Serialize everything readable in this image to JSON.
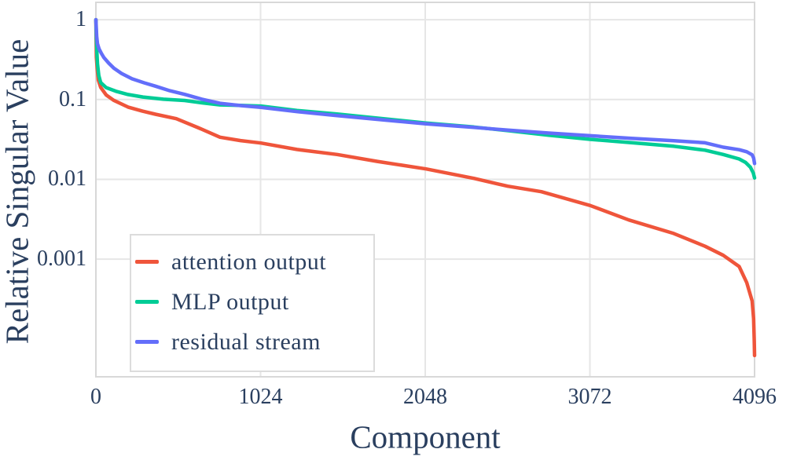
{
  "figure": {
    "background_color": "#ffffff",
    "text_color": "#2a3f5f",
    "grid_color": "#e6e6e6",
    "border_color": "#d8d8d8",
    "legend_border_color": "#dcdcdc"
  },
  "chart_data": {
    "type": "line",
    "title": "",
    "xlabel": "Component",
    "ylabel": "Relative Singular Value",
    "grid": true,
    "legend_position": "bottom-left",
    "x_axis": {
      "scale": "linear",
      "min": 0,
      "max": 4096,
      "ticks": [
        {
          "value": 0,
          "label": "0"
        },
        {
          "value": 1024,
          "label": "1024"
        },
        {
          "value": 2048,
          "label": "2048"
        },
        {
          "value": 3072,
          "label": "3072"
        },
        {
          "value": 4096,
          "label": "4096"
        }
      ]
    },
    "y_axis": {
      "scale": "log",
      "min": 3.36e-05,
      "max": 1.65,
      "ticks": [
        {
          "value": 1,
          "label": "1"
        },
        {
          "value": 0.1,
          "label": "0.1"
        },
        {
          "value": 0.01,
          "label": "0.01"
        },
        {
          "value": 0.001,
          "label": "0.001"
        }
      ]
    },
    "series": [
      {
        "name": "attention output",
        "color": "#EF553B",
        "points": [
          [
            0,
            1.0
          ],
          [
            3,
            0.34
          ],
          [
            8,
            0.25
          ],
          [
            15,
            0.175
          ],
          [
            30,
            0.142
          ],
          [
            64,
            0.114
          ],
          [
            110,
            0.098
          ],
          [
            200,
            0.0805
          ],
          [
            290,
            0.0715
          ],
          [
            370,
            0.0655
          ],
          [
            500,
            0.0575
          ],
          [
            640,
            0.044
          ],
          [
            772,
            0.0337
          ],
          [
            900,
            0.0306
          ],
          [
            1026,
            0.0285
          ],
          [
            1250,
            0.0237
          ],
          [
            1500,
            0.0205
          ],
          [
            1750,
            0.0168
          ],
          [
            2053,
            0.0135
          ],
          [
            2350,
            0.0103
          ],
          [
            2561,
            0.0082
          ],
          [
            2770,
            0.007
          ],
          [
            3074,
            0.0047
          ],
          [
            3314,
            0.0031
          ],
          [
            3593,
            0.0021
          ],
          [
            3788,
            0.00145
          ],
          [
            3901,
            0.00112
          ],
          [
            4000,
            0.00081
          ],
          [
            4047,
            0.00051
          ],
          [
            4081,
            0.0003
          ],
          [
            4090,
            0.00018
          ],
          [
            4094,
            9.6e-05
          ],
          [
            4096,
            6.2e-05
          ]
        ]
      },
      {
        "name": "MLP output",
        "color": "#00CC96",
        "points": [
          [
            0,
            1.0
          ],
          [
            3,
            0.59
          ],
          [
            6,
            0.4
          ],
          [
            10,
            0.28
          ],
          [
            18,
            0.2
          ],
          [
            30,
            0.163
          ],
          [
            64,
            0.141
          ],
          [
            130,
            0.126
          ],
          [
            200,
            0.1155
          ],
          [
            293,
            0.1075
          ],
          [
            420,
            0.101
          ],
          [
            552,
            0.0972
          ],
          [
            660,
            0.091
          ],
          [
            772,
            0.0857
          ],
          [
            900,
            0.0843
          ],
          [
            1026,
            0.0828
          ],
          [
            1250,
            0.073
          ],
          [
            1500,
            0.0658
          ],
          [
            1800,
            0.0572
          ],
          [
            2053,
            0.0507
          ],
          [
            2350,
            0.0453
          ],
          [
            2561,
            0.0408
          ],
          [
            2816,
            0.0357
          ],
          [
            3074,
            0.0317
          ],
          [
            3330,
            0.0288
          ],
          [
            3593,
            0.026
          ],
          [
            3788,
            0.0232
          ],
          [
            3901,
            0.0205
          ],
          [
            4000,
            0.018
          ],
          [
            4040,
            0.0163
          ],
          [
            4070,
            0.0142
          ],
          [
            4088,
            0.012
          ],
          [
            4096,
            0.0104
          ]
        ]
      },
      {
        "name": "residual stream",
        "color": "#636EFA",
        "points": [
          [
            0,
            1.0
          ],
          [
            5,
            0.62
          ],
          [
            10,
            0.5
          ],
          [
            20,
            0.43
          ],
          [
            35,
            0.375
          ],
          [
            50,
            0.335
          ],
          [
            80,
            0.285
          ],
          [
            112,
            0.247
          ],
          [
            160,
            0.212
          ],
          [
            225,
            0.182
          ],
          [
            300,
            0.162
          ],
          [
            371,
            0.147
          ],
          [
            460,
            0.129
          ],
          [
            552,
            0.116
          ],
          [
            660,
            0.101
          ],
          [
            772,
            0.0897
          ],
          [
            900,
            0.084
          ],
          [
            1026,
            0.0797
          ],
          [
            1250,
            0.0705
          ],
          [
            1500,
            0.063
          ],
          [
            1800,
            0.0553
          ],
          [
            2053,
            0.0497
          ],
          [
            2350,
            0.0448
          ],
          [
            2561,
            0.0413
          ],
          [
            2816,
            0.038
          ],
          [
            3074,
            0.0352
          ],
          [
            3330,
            0.0327
          ],
          [
            3593,
            0.0305
          ],
          [
            3788,
            0.0287
          ],
          [
            3901,
            0.0253
          ],
          [
            4000,
            0.0235
          ],
          [
            4047,
            0.0222
          ],
          [
            4081,
            0.0203
          ],
          [
            4090,
            0.0185
          ],
          [
            4096,
            0.0158
          ]
        ]
      }
    ]
  }
}
